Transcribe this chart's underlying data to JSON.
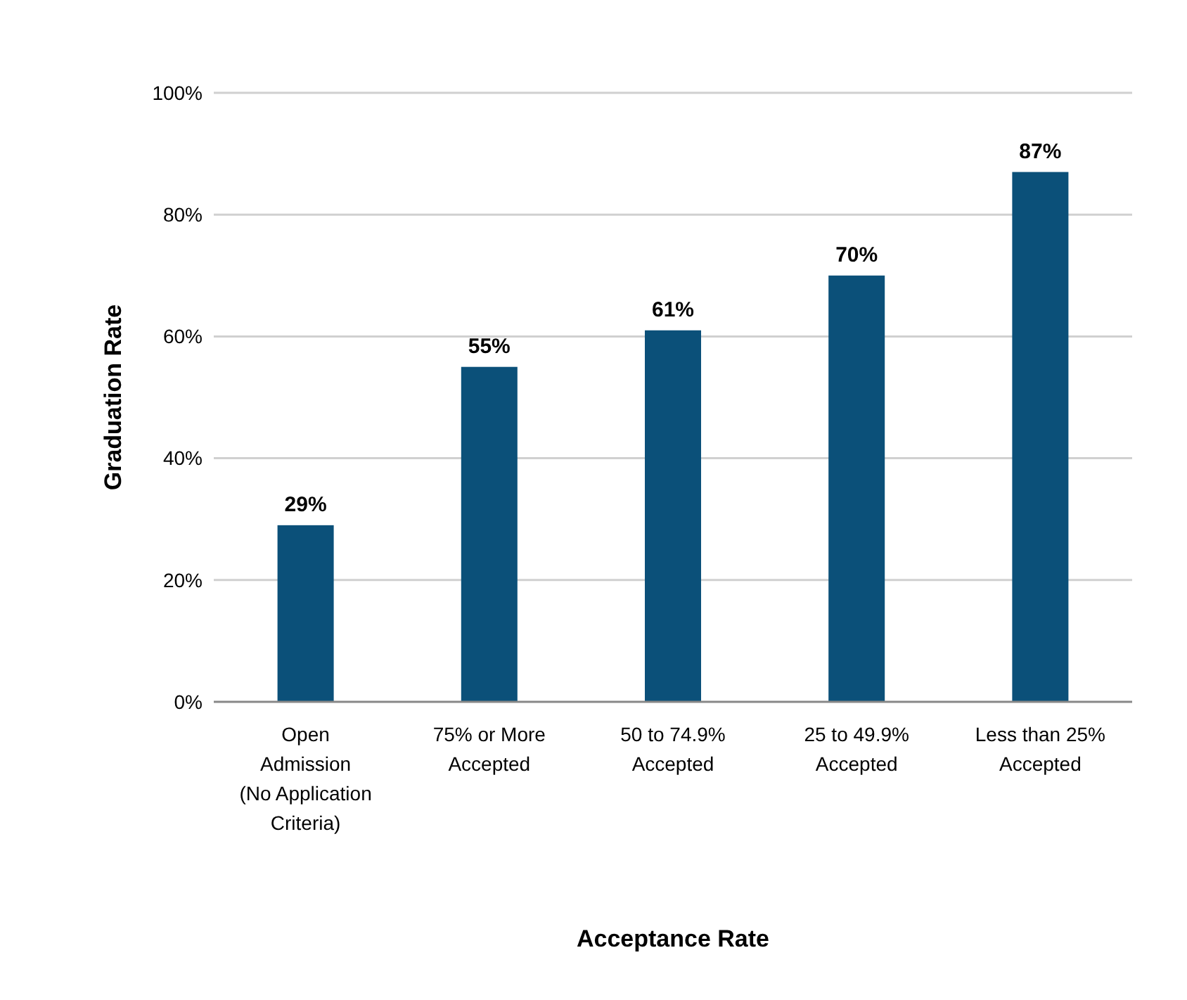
{
  "chart_data": {
    "type": "bar",
    "xlabel": "Acceptance Rate",
    "ylabel": "Graduation Rate",
    "categories": [
      "Open\nAdmission\n(No Application\nCriteria)",
      "75% or More\nAccepted",
      "50 to 74.9%\nAccepted",
      "25 to 49.9%\nAccepted",
      "Less than 25%\nAccepted"
    ],
    "values": [
      29,
      55,
      61,
      70,
      87
    ],
    "value_labels": [
      "29%",
      "55%",
      "61%",
      "70%",
      "87%"
    ],
    "color": "#0b5079",
    "ylim": [
      0,
      100
    ],
    "yticks": [
      {
        "value": 0,
        "label": "0%"
      },
      {
        "value": 20,
        "label": "20%"
      },
      {
        "value": 40,
        "label": "40%"
      },
      {
        "value": 60,
        "label": "60%"
      },
      {
        "value": 80,
        "label": "80%"
      },
      {
        "value": 100,
        "label": "100%"
      }
    ],
    "grid": "y"
  }
}
